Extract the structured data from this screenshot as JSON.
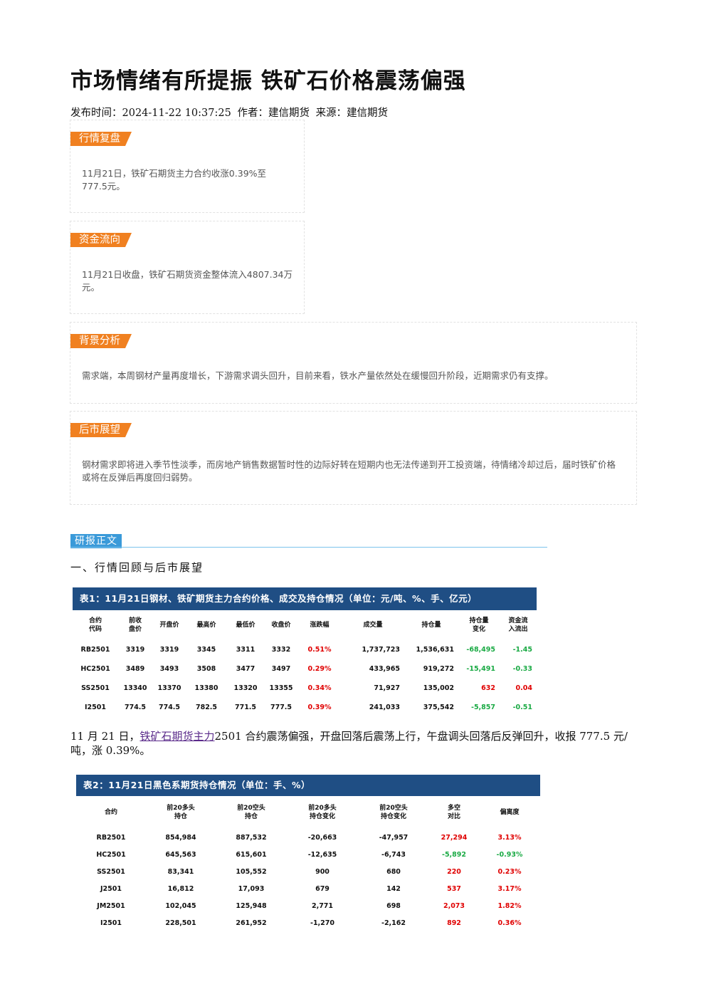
{
  "article": {
    "title": "市场情绪有所提振 铁矿石价格震荡偏强",
    "publish_label": "发布时间：",
    "publish_time": "2024-11-22 10:37:25",
    "author_label": "作者：",
    "author": "建信期货",
    "source_label": "来源：",
    "source": "建信期货"
  },
  "boxes": [
    {
      "tag": "行情复盘",
      "text": "11月21日，铁矿石期货主力合约收涨0.39%至777.5元。"
    },
    {
      "tag": "资金流向",
      "text": "11月21日收盘，铁矿石期货资金整体流入4807.34万元。"
    },
    {
      "tag": "背景分析",
      "text": "需求端，本周钢材产量再度增长，下游需求调头回升，目前来看，铁水产量依然处在缓慢回升阶段，近期需求仍有支撑。"
    },
    {
      "tag": "后市展望",
      "text": "钢材需求即将进入季节性淡季，而房地产销售数据暂时性的边际好转在短期内也无法传递到开工投资端，待情绪冷却过后，届时铁矿价格或将在反弹后再度回归弱势。"
    }
  ],
  "report": {
    "section_tag": "研报正文",
    "heading": "一、行情回顾与后市展望",
    "para_prefix": "11 月 21 日，",
    "para_link": "铁矿石期货主力",
    "para_suffix": "2501 合约震荡偏强，开盘回落后震荡上行，午盘调头回落后反弹回升，收报 777.5 元/吨，涨 0.39%。"
  },
  "table1": {
    "title": "表1：11月21日钢材、铁矿期货主力合约价格、成交及持仓情况（单位：元/吨、%、手、亿元）",
    "headers": [
      "合约\n代码",
      "前收\n盘价",
      "开盘价",
      "最高价",
      "最低价",
      "收盘价",
      "涨跌幅",
      "成交量",
      "持仓量",
      "持仓量\n变化",
      "资金流\n入流出"
    ],
    "rows": [
      [
        "RB2501",
        "3319",
        "3319",
        "3345",
        "3311",
        "3332",
        "0.51%",
        "1,737,723",
        "1,536,631",
        "-68,495",
        "-1.45"
      ],
      [
        "HC2501",
        "3489",
        "3493",
        "3508",
        "3477",
        "3497",
        "0.29%",
        "433,965",
        "919,272",
        "-15,491",
        "-0.33"
      ],
      [
        "SS2501",
        "13340",
        "13370",
        "13380",
        "13320",
        "13355",
        "0.34%",
        "71,927",
        "135,002",
        "632",
        "0.04"
      ],
      [
        "I2501",
        "774.5",
        "774.5",
        "782.5",
        "771.5",
        "777.5",
        "0.39%",
        "241,033",
        "375,542",
        "-5,857",
        "-0.51"
      ]
    ],
    "colors": [
      [
        "",
        "",
        "",
        "",
        "",
        "",
        "red",
        "",
        "",
        "green",
        "green"
      ],
      [
        "",
        "",
        "",
        "",
        "",
        "",
        "red",
        "",
        "",
        "green",
        "green"
      ],
      [
        "",
        "",
        "",
        "",
        "",
        "",
        "red",
        "",
        "",
        "red",
        "red"
      ],
      [
        "",
        "",
        "",
        "",
        "",
        "",
        "red",
        "",
        "",
        "green",
        "green"
      ]
    ]
  },
  "table2": {
    "title": "表2：11月21日黑色系期货持仓情况（单位：手、%）",
    "headers": [
      "合约",
      "前20多头\n持仓",
      "前20空头\n持仓",
      "前20多头\n持仓变化",
      "前20空头\n持仓变化",
      "多空\n对比",
      "偏离度"
    ],
    "rows": [
      [
        "RB2501",
        "854,984",
        "887,532",
        "-20,663",
        "-47,957",
        "27,294",
        "3.13%"
      ],
      [
        "HC2501",
        "645,563",
        "615,601",
        "-12,635",
        "-6,743",
        "-5,892",
        "-0.93%"
      ],
      [
        "SS2501",
        "83,341",
        "105,552",
        "900",
        "680",
        "220",
        "0.23%"
      ],
      [
        "J2501",
        "16,812",
        "17,093",
        "679",
        "142",
        "537",
        "3.17%"
      ],
      [
        "JM2501",
        "102,045",
        "125,948",
        "2,771",
        "698",
        "2,073",
        "1.82%"
      ],
      [
        "I2501",
        "228,501",
        "261,952",
        "-1,270",
        "-2,162",
        "892",
        "0.36%"
      ]
    ],
    "colors": [
      [
        "",
        "",
        "",
        "",
        "",
        "red",
        "red"
      ],
      [
        "",
        "",
        "",
        "",
        "",
        "green",
        "green"
      ],
      [
        "",
        "",
        "",
        "",
        "",
        "red",
        "red"
      ],
      [
        "",
        "",
        "",
        "",
        "",
        "red",
        "red"
      ],
      [
        "",
        "",
        "",
        "",
        "",
        "red",
        "red"
      ],
      [
        "",
        "",
        "",
        "",
        "",
        "red",
        "red"
      ]
    ]
  }
}
